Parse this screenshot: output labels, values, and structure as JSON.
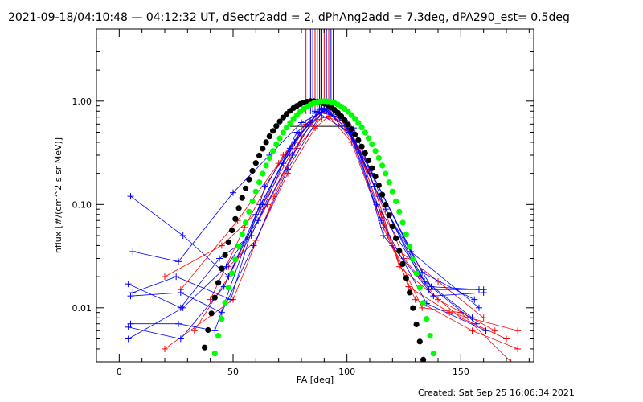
{
  "header": {
    "title": "2021-09-18/04:10:48 — 04:12:32 UT, dSectr2add = 2, dPhAng2add = 7.3deg, dPA290_est=  0.5deg"
  },
  "footer": {
    "created": "Created: Sat Sep 25 16:06:34 2021"
  },
  "colors": {
    "red": "#ff0000",
    "blue": "#0000ff",
    "green": "#00ff00",
    "black": "#000000"
  },
  "chart_data": {
    "type": "line",
    "title": "2021-09-18/04:10:48 — 04:12:32 UT, dSectr2add = 2, dPhAng2add = 7.3deg, dPA290_est=  0.5deg",
    "xlabel": "PA [deg]",
    "ylabel": "nflux [#/(cm^2 s sr MeV)]",
    "xlim": [
      -10,
      182
    ],
    "ylim": [
      0.003,
      5
    ],
    "yscale": "log",
    "x_ticks": [
      0,
      50,
      100,
      150
    ],
    "x_tick_labels": [
      "0",
      "50",
      "100",
      "150"
    ],
    "y_ticks": [
      0.01,
      0.1,
      1.0
    ],
    "y_tick_labels": [
      "0.01",
      "0.10",
      "1.00"
    ],
    "grid": false,
    "series": [
      {
        "color": "red",
        "marker": "+",
        "lines": [
          {
            "x": [
              20,
              50,
              68,
              80,
              90,
              100,
              112,
              125,
              140,
              165
            ],
            "y": [
              0.004,
              0.012,
              0.12,
              0.45,
              0.82,
              0.55,
              0.15,
              0.03,
              0.012,
              0.006
            ]
          },
          {
            "x": [
              27,
              52,
              70,
              82,
              91,
              103,
              115,
              127,
              145,
              175
            ],
            "y": [
              0.015,
              0.07,
              0.25,
              0.6,
              0.85,
              0.45,
              0.08,
              0.016,
              0.009,
              0.006
            ]
          },
          {
            "x": [
              33,
              48,
              65,
              78,
              89,
              98,
              110,
              123,
              150,
              170
            ],
            "y": [
              0.006,
              0.02,
              0.1,
              0.35,
              0.7,
              0.65,
              0.2,
              0.025,
              0.008,
              0.005
            ]
          },
          {
            "x": [
              40,
              55,
              72,
              84,
              92,
              102,
              116,
              130,
              155,
              175
            ],
            "y": [
              0.012,
              0.06,
              0.3,
              0.62,
              0.72,
              0.4,
              0.06,
              0.012,
              0.006,
              0.004
            ]
          },
          {
            "x": [
              20,
              45,
              62,
              75,
              88,
              97,
              108,
              120,
              140,
              160
            ],
            "y": [
              0.02,
              0.04,
              0.09,
              0.3,
              0.78,
              0.7,
              0.28,
              0.04,
              0.018,
              0.008
            ]
          },
          {
            "x": [
              48,
              60,
              74,
              86,
              93,
              105,
              118,
              133,
              150,
              172
            ],
            "y": [
              0.025,
              0.045,
              0.2,
              0.55,
              0.75,
              0.35,
              0.05,
              0.01,
              0.009,
              0.003
            ]
          }
        ]
      },
      {
        "color": "blue",
        "marker": "+",
        "lines": [
          {
            "x": [
              5,
              28,
              48,
              63,
              78,
              90,
              102,
              114,
              136,
              160
            ],
            "y": [
              0.12,
              0.05,
              0.02,
              0.1,
              0.5,
              0.84,
              0.5,
              0.12,
              0.015,
              0.015
            ]
          },
          {
            "x": [
              6,
              26,
              50,
              66,
              80,
              91,
              104,
              116,
              138,
              160
            ],
            "y": [
              0.035,
              0.028,
              0.13,
              0.3,
              0.62,
              0.82,
              0.4,
              0.05,
              0.013,
              0.014
            ]
          },
          {
            "x": [
              4,
              27,
              44,
              58,
              72,
              86,
              97,
              110,
              128,
              158
            ],
            "y": [
              0.017,
              0.01,
              0.03,
              0.05,
              0.25,
              0.8,
              0.7,
              0.22,
              0.035,
              0.01
            ]
          },
          {
            "x": [
              5,
              26,
              42,
              60,
              75,
              88,
              99,
              112,
              132,
              155
            ],
            "y": [
              0.007,
              0.007,
              0.006,
              0.08,
              0.35,
              0.83,
              0.65,
              0.15,
              0.02,
              0.008
            ]
          },
          {
            "x": [
              4,
              27,
              46,
              62,
              77,
              89,
              100,
              113,
              134,
              157
            ],
            "y": [
              0.0065,
              0.005,
              0.016,
              0.1,
              0.4,
              0.86,
              0.6,
              0.1,
              0.018,
              0.007
            ]
          },
          {
            "x": [
              6,
              25,
              49,
              64,
              79,
              92,
              103,
              117,
              137,
              158
            ],
            "y": [
              0.014,
              0.02,
              0.012,
              0.15,
              0.48,
              0.87,
              0.55,
              0.09,
              0.016,
              0.015
            ]
          },
          {
            "x": [
              4,
              28,
              47,
              61,
              76,
              87,
              101,
              115,
              135,
              161
            ],
            "y": [
              0.005,
              0.01,
              0.025,
              0.07,
              0.3,
              0.78,
              0.5,
              0.07,
              0.011,
              0.006
            ]
          },
          {
            "x": [
              5,
              27,
              45,
              59,
              74,
              90,
              98,
              111,
              133,
              156
            ],
            "y": [
              0.013,
              0.014,
              0.009,
              0.04,
              0.22,
              0.85,
              0.68,
              0.2,
              0.022,
              0.012
            ]
          }
        ]
      }
    ],
    "model_curves": [
      {
        "color": "black",
        "marker": "dot",
        "peak_x": 85,
        "peak_y": 1.0
      },
      {
        "color": "green",
        "marker": "dot",
        "peak_x": 90,
        "peak_y": 1.0
      }
    ],
    "reference_lines": {
      "x": [
        82,
        84,
        85,
        86,
        87,
        88,
        89,
        90,
        91,
        92,
        93,
        94
      ],
      "colors": [
        "red",
        "blue",
        "blue",
        "red",
        "red",
        "black",
        "blue",
        "red",
        "blue",
        "red",
        "blue",
        "black"
      ]
    },
    "plateau_line": {
      "x": [
        75,
        101
      ],
      "y": 0.57
    }
  }
}
